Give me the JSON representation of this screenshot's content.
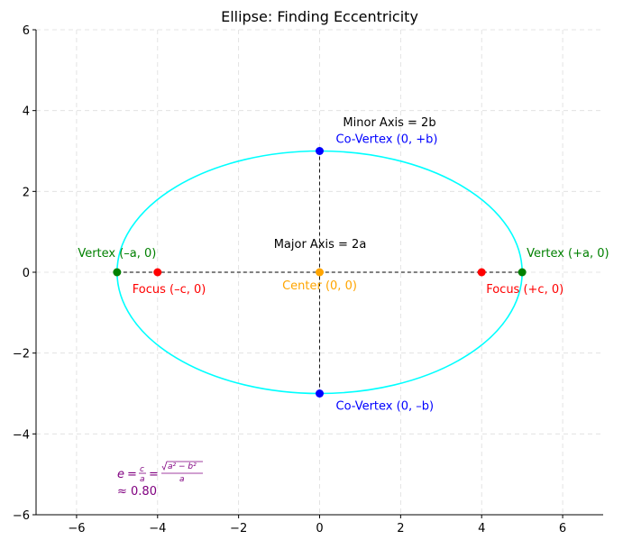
{
  "chart_data": {
    "type": "scatter",
    "title": "Ellipse: Finding Eccentricity",
    "xlabel": "",
    "ylabel": "",
    "xlim": [
      -7,
      7
    ],
    "ylim": [
      -6,
      6
    ],
    "x_ticks": [
      -6,
      -4,
      -2,
      0,
      2,
      4,
      6
    ],
    "y_ticks": [
      -6,
      -4,
      -2,
      0,
      2,
      4,
      6
    ],
    "x_tick_labels": [
      "−6",
      "−4",
      "−2",
      "0",
      "2",
      "4",
      "6"
    ],
    "y_tick_labels": [
      "−6",
      "−4",
      "−2",
      "0",
      "2",
      "4",
      "6"
    ],
    "grid": true,
    "ellipse": {
      "a": 5,
      "b": 3,
      "center": [
        0,
        0
      ],
      "color": "#00ffff"
    },
    "axes_lines": [
      {
        "name": "major-axis",
        "from": [
          -5,
          0
        ],
        "to": [
          5,
          0
        ]
      },
      {
        "name": "minor-axis",
        "from": [
          0,
          -3
        ],
        "to": [
          0,
          3
        ]
      }
    ],
    "points": [
      {
        "name": "vertex-left",
        "x": -5,
        "y": 0,
        "color": "#008000",
        "label": "Vertex (–a, 0)"
      },
      {
        "name": "vertex-right",
        "x": 5,
        "y": 0,
        "color": "#008000",
        "label": "Vertex (+a, 0)"
      },
      {
        "name": "focus-left",
        "x": -4,
        "y": 0,
        "color": "#ff0000",
        "label": "Focus (–c, 0)"
      },
      {
        "name": "focus-right",
        "x": 4,
        "y": 0,
        "color": "#ff0000",
        "label": "Focus (+c, 0)"
      },
      {
        "name": "center",
        "x": 0,
        "y": 0,
        "color": "#ffa500",
        "label": "Center (0, 0)"
      },
      {
        "name": "covertex-top",
        "x": 0,
        "y": 3,
        "color": "#0000ff",
        "label": "Co-Vertex (0, +b)"
      },
      {
        "name": "covertex-bottom",
        "x": 0,
        "y": -3,
        "color": "#0000ff",
        "label": "Co-Vertex (0, –b)"
      }
    ],
    "annotations": [
      {
        "name": "major-axis-label",
        "text": "Major Axis = 2a",
        "color": "#000000"
      },
      {
        "name": "minor-axis-label",
        "text": "Minor Axis = 2b",
        "color": "#000000"
      }
    ],
    "formula": {
      "color": "#800080",
      "e": "e",
      "eq": "=",
      "c": "c",
      "a": "a",
      "radicand": "a² − b²",
      "approx": "≈ 0.80"
    }
  }
}
